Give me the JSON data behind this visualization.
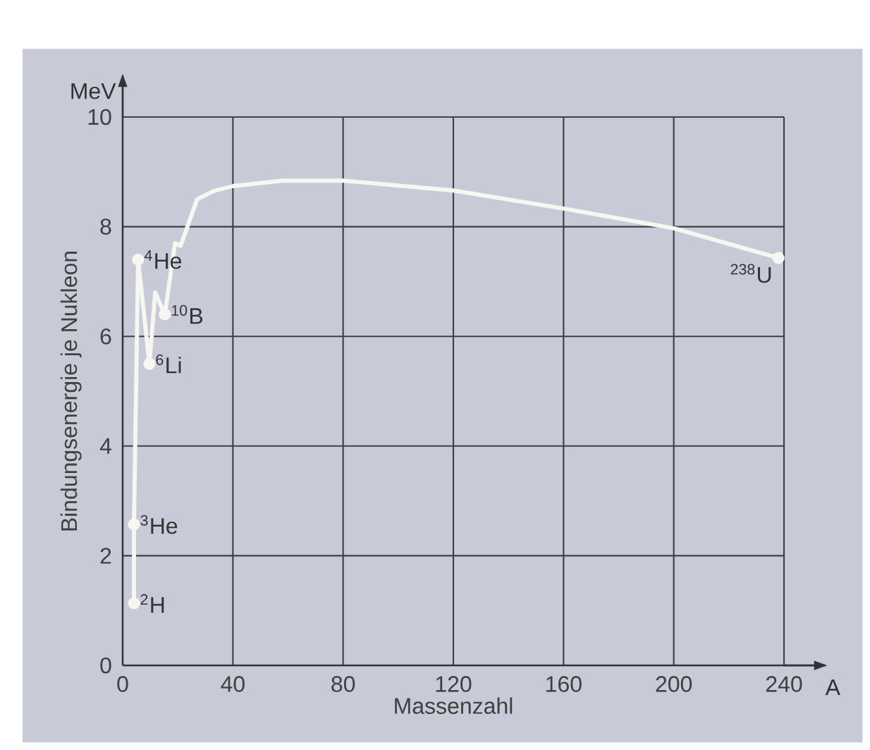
{
  "chart_data": {
    "type": "line",
    "xlabel": "Massenzahl",
    "ylabel": "Bindungsenergie je Nukleon",
    "annotations": [
      "MeV",
      "A",
      {
        "text": "$^{2}$H",
        "x": 4.1,
        "y": 1.13
      },
      {
        "text": "$^{3}$He",
        "x": 4.1,
        "y": 2.57
      },
      {
        "text": "$^{4}$He",
        "x": 5.6,
        "y": 7.4
      },
      {
        "text": "$^{6}$Li",
        "x": 9.7,
        "y": 5.5
      },
      {
        "text": "$^{10}$B",
        "x": 15.3,
        "y": 6.4
      },
      {
        "text": "$^{238}$U",
        "x": 238,
        "y": 7.43
      }
    ],
    "series": [
      {
        "color": "#f7f7f2",
        "marker": "none",
        "x": [
          4.1,
          4.1,
          5.6,
          9.7,
          11.8,
          15.3,
          19,
          21,
          23.5,
          27,
          33,
          40,
          58,
          80,
          120,
          160,
          200,
          238
        ],
        "values": [
          1.13,
          2.57,
          7.4,
          5.5,
          6.8,
          6.4,
          7.7,
          7.65,
          8.0,
          8.5,
          8.65,
          8.74,
          8.84,
          8.84,
          8.66,
          8.33,
          7.97,
          7.43
        ]
      },
      {
        "type": "scatter",
        "color": "#f7f7f2",
        "marker": "circle",
        "x": [
          4.1,
          4.1,
          5.6,
          9.7,
          15.3,
          238
        ],
        "values": [
          1.13,
          2.57,
          7.4,
          5.5,
          6.4,
          7.43
        ]
      }
    ],
    "xlim": [
      0,
      240
    ],
    "ylim": [
      0,
      10
    ],
    "xticks": [
      0,
      40,
      80,
      120,
      160,
      200,
      240
    ],
    "yticks": [
      0,
      2,
      4,
      6,
      8,
      10
    ],
    "grid": true
  }
}
